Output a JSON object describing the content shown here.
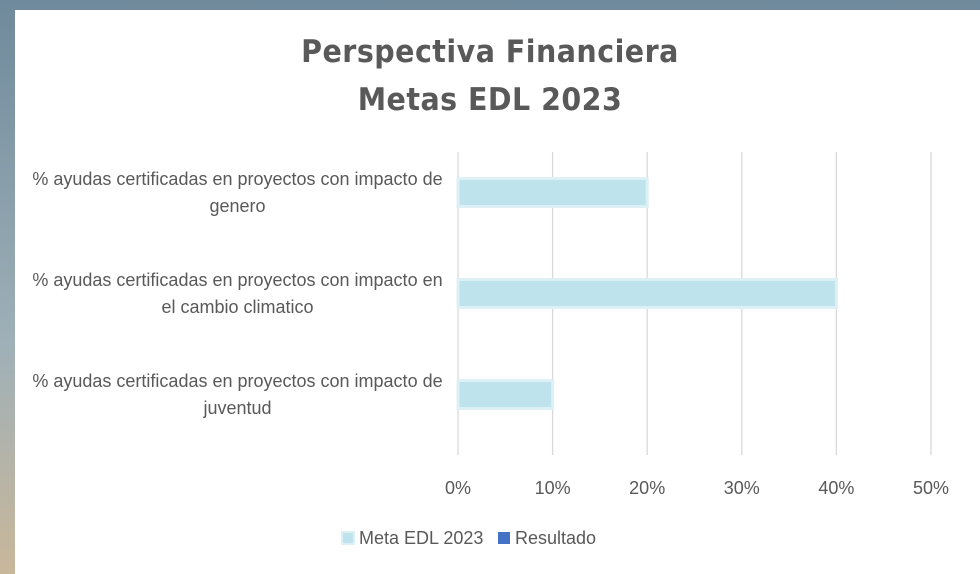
{
  "chart_data": {
    "type": "barh",
    "title": [
      "Perspectiva Financiera",
      "Metas EDL 2023"
    ],
    "categories": [
      "% ayudas certificadas en proyectos con impacto de genero",
      "% ayudas certificadas en proyectos con impacto en el cambio climatico",
      "% ayudas certificadas en proyectos con impacto de juventud"
    ],
    "series": [
      {
        "name": "Meta EDL 2023",
        "color": "#bfe3ec",
        "values": [
          20,
          40,
          10
        ]
      },
      {
        "name": "Resultado",
        "color": "#4472c4",
        "values": [
          null,
          null,
          null
        ]
      }
    ],
    "xlim": [
      0,
      50
    ],
    "xticks": [
      {
        "value": 0,
        "label": "0%"
      },
      {
        "value": 10,
        "label": "10%"
      },
      {
        "value": 20,
        "label": "20%"
      },
      {
        "value": 30,
        "label": "30%"
      },
      {
        "value": 40,
        "label": "40%"
      },
      {
        "value": 50,
        "label": "50%"
      }
    ],
    "grid": true,
    "legend": "bottom"
  }
}
